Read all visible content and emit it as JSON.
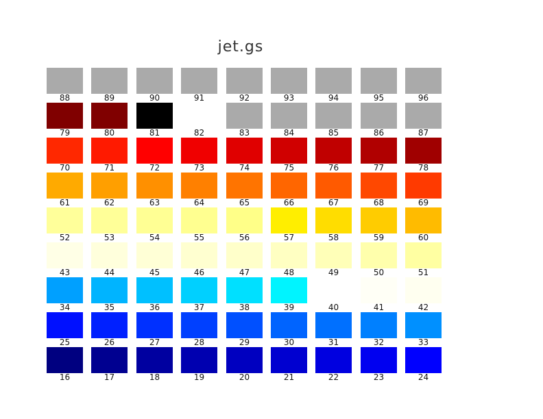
{
  "title": "jet.gs",
  "rows": [
    [
      {
        "n": "88",
        "c": "#aaaaaa"
      },
      {
        "n": "89",
        "c": "#aaaaaa"
      },
      {
        "n": "90",
        "c": "#aaaaaa"
      },
      {
        "n": "91",
        "c": "#aaaaaa"
      },
      {
        "n": "92",
        "c": "#aaaaaa"
      },
      {
        "n": "93",
        "c": "#aaaaaa"
      },
      {
        "n": "94",
        "c": "#aaaaaa"
      },
      {
        "n": "95",
        "c": "#aaaaaa"
      },
      {
        "n": "96",
        "c": "#aaaaaa"
      }
    ],
    [
      {
        "n": "79",
        "c": "#800000"
      },
      {
        "n": "80",
        "c": "#800000"
      },
      {
        "n": "81",
        "c": "#000000"
      },
      {
        "n": "82",
        "c": "#ffffff"
      },
      {
        "n": "83",
        "c": "#aaaaaa"
      },
      {
        "n": "84",
        "c": "#aaaaaa"
      },
      {
        "n": "85",
        "c": "#aaaaaa"
      },
      {
        "n": "86",
        "c": "#aaaaaa"
      },
      {
        "n": "87",
        "c": "#aaaaaa"
      }
    ],
    [
      {
        "n": "70",
        "c": "#ff2800"
      },
      {
        "n": "71",
        "c": "#ff1a00"
      },
      {
        "n": "72",
        "c": "#ff0000"
      },
      {
        "n": "73",
        "c": "#f00000"
      },
      {
        "n": "74",
        "c": "#e00000"
      },
      {
        "n": "75",
        "c": "#d00000"
      },
      {
        "n": "76",
        "c": "#c00000"
      },
      {
        "n": "77",
        "c": "#b00000"
      },
      {
        "n": "78",
        "c": "#a00000"
      }
    ],
    [
      {
        "n": "61",
        "c": "#ffaa00"
      },
      {
        "n": "62",
        "c": "#ff9f00"
      },
      {
        "n": "63",
        "c": "#ff9000"
      },
      {
        "n": "64",
        "c": "#ff8000"
      },
      {
        "n": "65",
        "c": "#ff7400"
      },
      {
        "n": "66",
        "c": "#ff6600"
      },
      {
        "n": "67",
        "c": "#ff5a00"
      },
      {
        "n": "68",
        "c": "#ff4800"
      },
      {
        "n": "69",
        "c": "#ff3a00"
      }
    ],
    [
      {
        "n": "52",
        "c": "#ffff9a"
      },
      {
        "n": "53",
        "c": "#ffff98"
      },
      {
        "n": "54",
        "c": "#ffff94"
      },
      {
        "n": "55",
        "c": "#ffff90"
      },
      {
        "n": "56",
        "c": "#ffff88"
      },
      {
        "n": "57",
        "c": "#ffee00"
      },
      {
        "n": "58",
        "c": "#ffdd00"
      },
      {
        "n": "59",
        "c": "#ffcc00"
      },
      {
        "n": "60",
        "c": "#ffbb00"
      }
    ],
    [
      {
        "n": "43",
        "c": "#ffffe6"
      },
      {
        "n": "44",
        "c": "#ffffdc"
      },
      {
        "n": "45",
        "c": "#ffffd6"
      },
      {
        "n": "46",
        "c": "#ffffd0"
      },
      {
        "n": "47",
        "c": "#ffffca"
      },
      {
        "n": "48",
        "c": "#ffffc2"
      },
      {
        "n": "49",
        "c": "#ffffb8"
      },
      {
        "n": "50",
        "c": "#ffffac"
      },
      {
        "n": "51",
        "c": "#ffffa2"
      }
    ],
    [
      {
        "n": "34",
        "c": "#00a0ff"
      },
      {
        "n": "35",
        "c": "#00b4ff"
      },
      {
        "n": "36",
        "c": "#00c0ff"
      },
      {
        "n": "37",
        "c": "#00d0ff"
      },
      {
        "n": "38",
        "c": "#00e0ff"
      },
      {
        "n": "39",
        "c": "#00f4ff"
      },
      {
        "n": "40",
        "c": "#ffffff"
      },
      {
        "n": "41",
        "c": "#fffff6"
      },
      {
        "n": "42",
        "c": "#fffff0"
      }
    ],
    [
      {
        "n": "25",
        "c": "#0010ff"
      },
      {
        "n": "26",
        "c": "#0020ff"
      },
      {
        "n": "27",
        "c": "#0030ff"
      },
      {
        "n": "28",
        "c": "#0040ff"
      },
      {
        "n": "29",
        "c": "#0050ff"
      },
      {
        "n": "30",
        "c": "#0064ff"
      },
      {
        "n": "31",
        "c": "#0070ff"
      },
      {
        "n": "32",
        "c": "#0080ff"
      },
      {
        "n": "33",
        "c": "#0090ff"
      }
    ],
    [
      {
        "n": "16",
        "c": "#000080"
      },
      {
        "n": "17",
        "c": "#000090"
      },
      {
        "n": "18",
        "c": "#0000a0"
      },
      {
        "n": "19",
        "c": "#0000b0"
      },
      {
        "n": "20",
        "c": "#0000c0"
      },
      {
        "n": "21",
        "c": "#0000d0"
      },
      {
        "n": "22",
        "c": "#0000e0"
      },
      {
        "n": "23",
        "c": "#0000f0"
      },
      {
        "n": "24",
        "c": "#0000ff"
      }
    ]
  ]
}
